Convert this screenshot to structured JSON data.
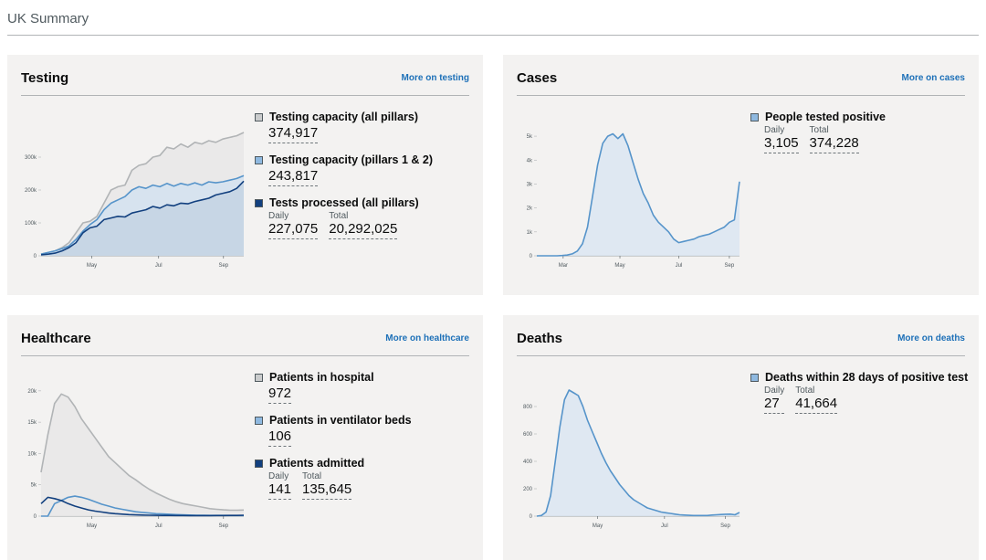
{
  "page": {
    "title": "UK Summary"
  },
  "colors": {
    "grey": "#b1b4b6",
    "mid": "#5694ca",
    "dark": "#12407f",
    "link": "#1d70b8"
  },
  "cards": {
    "testing": {
      "title": "Testing",
      "link": "More on testing",
      "metrics": [
        {
          "label": "Testing capacity (all pillars)",
          "key_color": "#cacccd",
          "value": "374,917"
        },
        {
          "label": "Testing capacity (pillars 1 & 2)",
          "key_color": "#8fb9e0",
          "value": "243,817"
        },
        {
          "label": "Tests processed (all pillars)",
          "key_color": "#12407f",
          "daily_label": "Daily",
          "daily": "227,075",
          "total_label": "Total",
          "total": "20,292,025"
        }
      ]
    },
    "cases": {
      "title": "Cases",
      "link": "More on cases",
      "metrics": [
        {
          "label": "People tested positive",
          "key_color": "#8fb9e0",
          "daily_label": "Daily",
          "daily": "3,105",
          "total_label": "Total",
          "total": "374,228"
        }
      ]
    },
    "healthcare": {
      "title": "Healthcare",
      "link": "More on healthcare",
      "metrics": [
        {
          "label": "Patients in hospital",
          "key_color": "#cacccd",
          "value": "972"
        },
        {
          "label": "Patients in ventilator beds",
          "key_color": "#8fb9e0",
          "value": "106"
        },
        {
          "label": "Patients admitted",
          "key_color": "#12407f",
          "daily_label": "Daily",
          "daily": "141",
          "total_label": "Total",
          "total": "135,645"
        }
      ]
    },
    "deaths": {
      "title": "Deaths",
      "link": "More on deaths",
      "metrics": [
        {
          "label": "Deaths within 28 days of positive test",
          "key_color": "#8fb9e0",
          "daily_label": "Daily",
          "daily": "27",
          "total_label": "Total",
          "total": "41,664"
        }
      ]
    }
  },
  "chart_data": [
    {
      "id": "testing",
      "type": "area",
      "ylim": [
        0,
        400000
      ],
      "yticks": [
        {
          "v": 0,
          "label": "0"
        },
        {
          "v": 100000,
          "label": "100k"
        },
        {
          "v": 200000,
          "label": "200k"
        },
        {
          "v": 300000,
          "label": "300k"
        }
      ],
      "xticks": [
        {
          "t": 0.25,
          "label": "May"
        },
        {
          "t": 0.58,
          "label": "Jul"
        },
        {
          "t": 0.9,
          "label": "Sep"
        }
      ],
      "series": [
        {
          "name": "Testing capacity (all pillars)",
          "color": "grey",
          "fill": "#e8e8e8",
          "values": [
            5000,
            10000,
            15000,
            25000,
            40000,
            70000,
            100000,
            105000,
            120000,
            160000,
            200000,
            210000,
            215000,
            260000,
            275000,
            280000,
            300000,
            305000,
            330000,
            325000,
            340000,
            330000,
            345000,
            340000,
            350000,
            345000,
            355000,
            360000,
            365000,
            375000
          ]
        },
        {
          "name": "Testing capacity (pillars 1 & 2)",
          "color": "mid",
          "fill": "#d4e2f0",
          "values": [
            5000,
            10000,
            15000,
            22000,
            30000,
            50000,
            75000,
            95000,
            110000,
            140000,
            160000,
            170000,
            180000,
            200000,
            210000,
            205000,
            215000,
            210000,
            220000,
            212000,
            220000,
            215000,
            222000,
            215000,
            225000,
            222000,
            225000,
            230000,
            235000,
            244000
          ]
        },
        {
          "name": "Tests processed (all pillars)",
          "color": "dark",
          "fill": "#c4d3e3",
          "values": [
            3000,
            5000,
            8000,
            15000,
            25000,
            40000,
            70000,
            85000,
            90000,
            110000,
            115000,
            120000,
            118000,
            130000,
            135000,
            140000,
            150000,
            145000,
            155000,
            152000,
            160000,
            158000,
            165000,
            170000,
            175000,
            185000,
            190000,
            195000,
            205000,
            227000
          ]
        }
      ]
    },
    {
      "id": "cases",
      "type": "area",
      "ylim": [
        0,
        5500
      ],
      "yticks": [
        {
          "v": 0,
          "label": "0"
        },
        {
          "v": 1000,
          "label": "1k"
        },
        {
          "v": 2000,
          "label": "2k"
        },
        {
          "v": 3000,
          "label": "3k"
        },
        {
          "v": 4000,
          "label": "4k"
        },
        {
          "v": 5000,
          "label": "5k"
        }
      ],
      "xticks": [
        {
          "t": 0.13,
          "label": "Mar"
        },
        {
          "t": 0.41,
          "label": "May"
        },
        {
          "t": 0.7,
          "label": "Jul"
        },
        {
          "t": 0.95,
          "label": "Sep"
        }
      ],
      "series": [
        {
          "name": "People tested positive",
          "color": "mid",
          "fill": "#dbe6f2",
          "values": [
            0,
            0,
            0,
            0,
            0,
            10,
            30,
            80,
            200,
            500,
            1200,
            2500,
            3800,
            4700,
            5000,
            5100,
            4900,
            5100,
            4600,
            3900,
            3200,
            2600,
            2200,
            1700,
            1400,
            1200,
            1000,
            700,
            550,
            600,
            650,
            700,
            800,
            850,
            900,
            1000,
            1100,
            1200,
            1400,
            1500,
            3100
          ]
        }
      ]
    },
    {
      "id": "healthcare",
      "type": "area",
      "ylim": [
        0,
        21000
      ],
      "yticks": [
        {
          "v": 0,
          "label": "0"
        },
        {
          "v": 5000,
          "label": "5k"
        },
        {
          "v": 10000,
          "label": "10k"
        },
        {
          "v": 15000,
          "label": "15k"
        },
        {
          "v": 20000,
          "label": "20k"
        }
      ],
      "xticks": [
        {
          "t": 0.25,
          "label": "May"
        },
        {
          "t": 0.58,
          "label": "Jul"
        },
        {
          "t": 0.9,
          "label": "Sep"
        }
      ],
      "series": [
        {
          "name": "Patients in hospital",
          "color": "grey",
          "fill": "#e8e8e8",
          "values": [
            7000,
            13000,
            18000,
            19500,
            19000,
            17500,
            15500,
            14000,
            12500,
            11000,
            9500,
            8500,
            7500,
            6500,
            5800,
            5000,
            4300,
            3700,
            3200,
            2700,
            2300,
            2000,
            1800,
            1600,
            1400,
            1200,
            1100,
            1000,
            950,
            950,
            972
          ]
        },
        {
          "name": "Patients in ventilator beds",
          "color": "mid",
          "fill": "none",
          "values": [
            0,
            0,
            2000,
            2500,
            3000,
            3200,
            3000,
            2700,
            2300,
            1900,
            1600,
            1300,
            1100,
            900,
            700,
            600,
            500,
            400,
            350,
            300,
            250,
            200,
            180,
            150,
            130,
            120,
            110,
            110,
            105,
            100,
            106
          ]
        },
        {
          "name": "Patients admitted",
          "color": "dark",
          "fill": "none",
          "values": [
            2000,
            3000,
            2800,
            2500,
            2000,
            1600,
            1300,
            1000,
            800,
            650,
            500,
            400,
            320,
            250,
            200,
            170,
            150,
            130,
            120,
            110,
            100,
            95,
            90,
            90,
            88,
            90,
            95,
            100,
            110,
            120,
            141
          ]
        }
      ]
    },
    {
      "id": "deaths",
      "type": "area",
      "ylim": [
        0,
        960
      ],
      "yticks": [
        {
          "v": 0,
          "label": "0"
        },
        {
          "v": 200,
          "label": "200"
        },
        {
          "v": 400,
          "label": "400"
        },
        {
          "v": 600,
          "label": "600"
        },
        {
          "v": 800,
          "label": "800"
        }
      ],
      "xticks": [
        {
          "t": 0.3,
          "label": "May"
        },
        {
          "t": 0.63,
          "label": "Jul"
        },
        {
          "t": 0.93,
          "label": "Sep"
        }
      ],
      "series": [
        {
          "name": "Deaths within 28 days of positive test",
          "color": "mid",
          "fill": "#dbe6f2",
          "values": [
            0,
            5,
            30,
            150,
            400,
            650,
            850,
            920,
            900,
            880,
            800,
            700,
            620,
            540,
            460,
            390,
            330,
            280,
            230,
            190,
            150,
            120,
            100,
            80,
            60,
            50,
            40,
            30,
            25,
            20,
            15,
            10,
            8,
            6,
            5,
            5,
            5,
            5,
            8,
            10,
            12,
            14,
            15,
            10,
            27
          ]
        }
      ]
    }
  ]
}
